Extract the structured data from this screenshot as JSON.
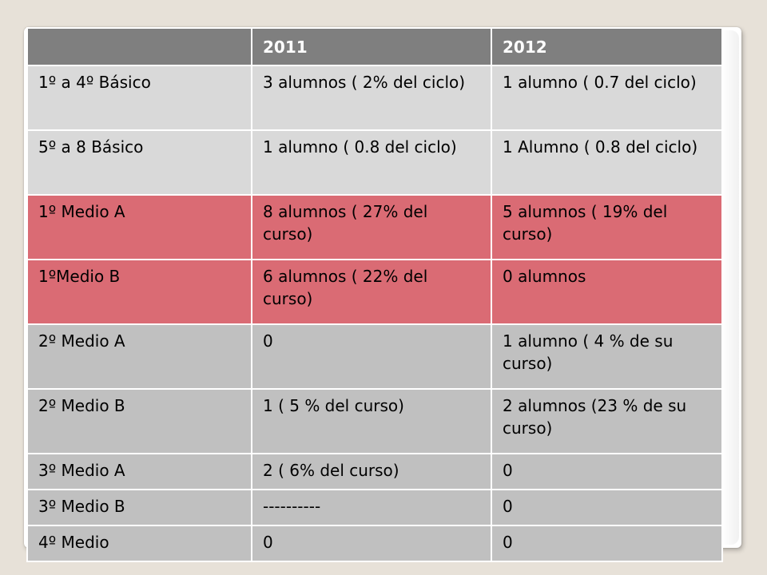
{
  "table": {
    "headers": [
      "",
      "2011",
      "2012"
    ],
    "rows": [
      {
        "group": "light",
        "cells": [
          "1º a 4º Básico",
          "3 alumnos ( 2% del ciclo)",
          "1 alumno  ( 0.7 del ciclo)"
        ]
      },
      {
        "group": "light",
        "cells": [
          "5º a 8 Básico",
          "1 alumno ( 0.8 del ciclo)",
          "1  Alumno ( 0.8 del ciclo)"
        ]
      },
      {
        "group": "red",
        "cells": [
          "1º Medio A",
          "8 alumnos ( 27% del curso)",
          "5 alumnos ( 19% del curso)"
        ]
      },
      {
        "group": "red",
        "cells": [
          "1ºMedio B",
          "6 alumnos ( 22% del curso)",
          "0 alumnos"
        ]
      },
      {
        "group": "grey",
        "cells": [
          "2º Medio A",
          "0",
          "1 alumno ( 4 % de su curso)"
        ]
      },
      {
        "group": "grey",
        "cells": [
          "2º Medio B",
          "1 ( 5 % del curso)",
          "2 alumnos (23 % de su curso)"
        ]
      },
      {
        "group": "grey",
        "cells": [
          "3º Medio A",
          "2 ( 6% del curso)",
          "0"
        ]
      },
      {
        "group": "grey",
        "cells": [
          "3º Medio B",
          "----------",
          "0"
        ]
      },
      {
        "group": "grey",
        "cells": [
          "4º Medio",
          "0",
          "0"
        ]
      }
    ]
  },
  "colors": {
    "header": "#7f7f7f",
    "light_rows": "#d9d9d9",
    "red_rows": "#da6b74",
    "grey_rows": "#c0c0c0",
    "background": "#e7e1d8"
  }
}
